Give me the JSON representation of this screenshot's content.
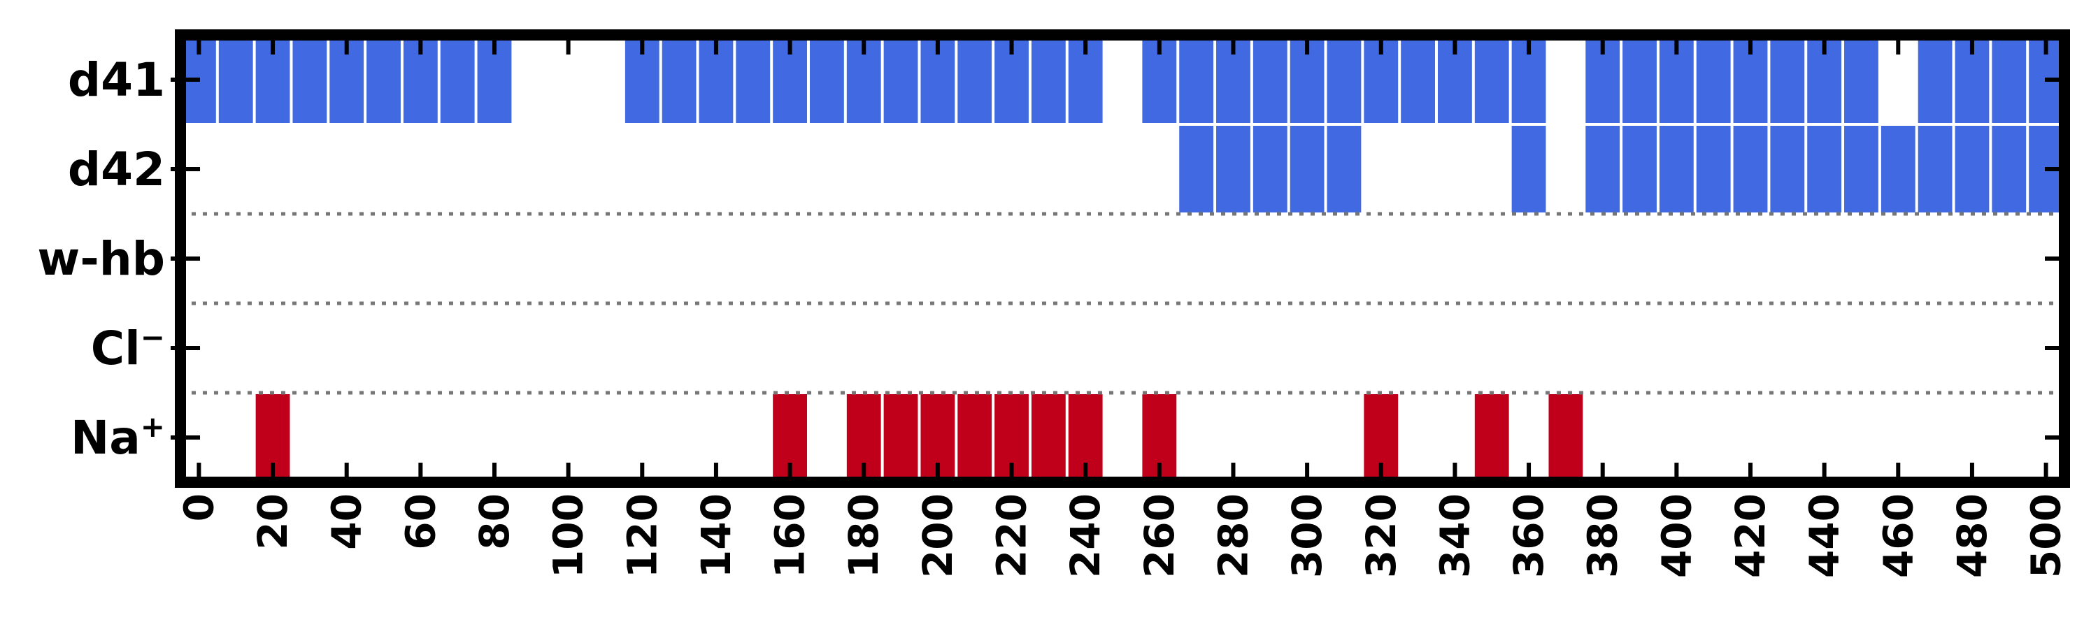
{
  "chart_data": {
    "type": "heatmap",
    "xlim": [
      -5,
      505
    ],
    "bin_width": 10,
    "x_ticks": [
      0,
      20,
      40,
      60,
      80,
      100,
      120,
      140,
      160,
      180,
      200,
      220,
      240,
      260,
      280,
      300,
      320,
      340,
      360,
      380,
      400,
      420,
      440,
      460,
      480,
      500
    ],
    "x_tick_labels": [
      "0",
      "20",
      "40",
      "60",
      "80",
      "100",
      "120",
      "140",
      "160",
      "180",
      "200",
      "220",
      "240",
      "260",
      "280",
      "300",
      "320",
      "340",
      "360",
      "380",
      "400",
      "420",
      "440",
      "460",
      "480",
      "500"
    ],
    "rows": [
      {
        "label": "d41",
        "superscript": "",
        "color": "#4169e1",
        "x": [
          0,
          10,
          20,
          30,
          40,
          50,
          60,
          70,
          80,
          120,
          130,
          140,
          150,
          160,
          170,
          180,
          190,
          200,
          210,
          220,
          230,
          240,
          260,
          270,
          280,
          290,
          300,
          310,
          320,
          330,
          340,
          350,
          360,
          380,
          390,
          400,
          410,
          420,
          430,
          440,
          450,
          470,
          480,
          490,
          500
        ]
      },
      {
        "label": "d42",
        "superscript": "",
        "color": "#4169e1",
        "x": [
          270,
          280,
          290,
          300,
          310,
          360,
          380,
          390,
          400,
          410,
          420,
          430,
          440,
          450,
          460,
          470,
          480,
          490,
          500
        ]
      },
      {
        "label": "w-hb",
        "superscript": "",
        "color": "#4169e1",
        "x": []
      },
      {
        "label": "Cl",
        "superscript": "−",
        "color": "#c0001a",
        "x": []
      },
      {
        "label": "Na",
        "superscript": "+",
        "color": "#c0001a",
        "x": [
          20,
          160,
          180,
          190,
          200,
          210,
          220,
          230,
          240,
          260,
          320,
          350,
          370
        ]
      }
    ],
    "separators_after_rows": [
      1,
      2,
      3
    ],
    "grid": false,
    "legend": "none"
  }
}
